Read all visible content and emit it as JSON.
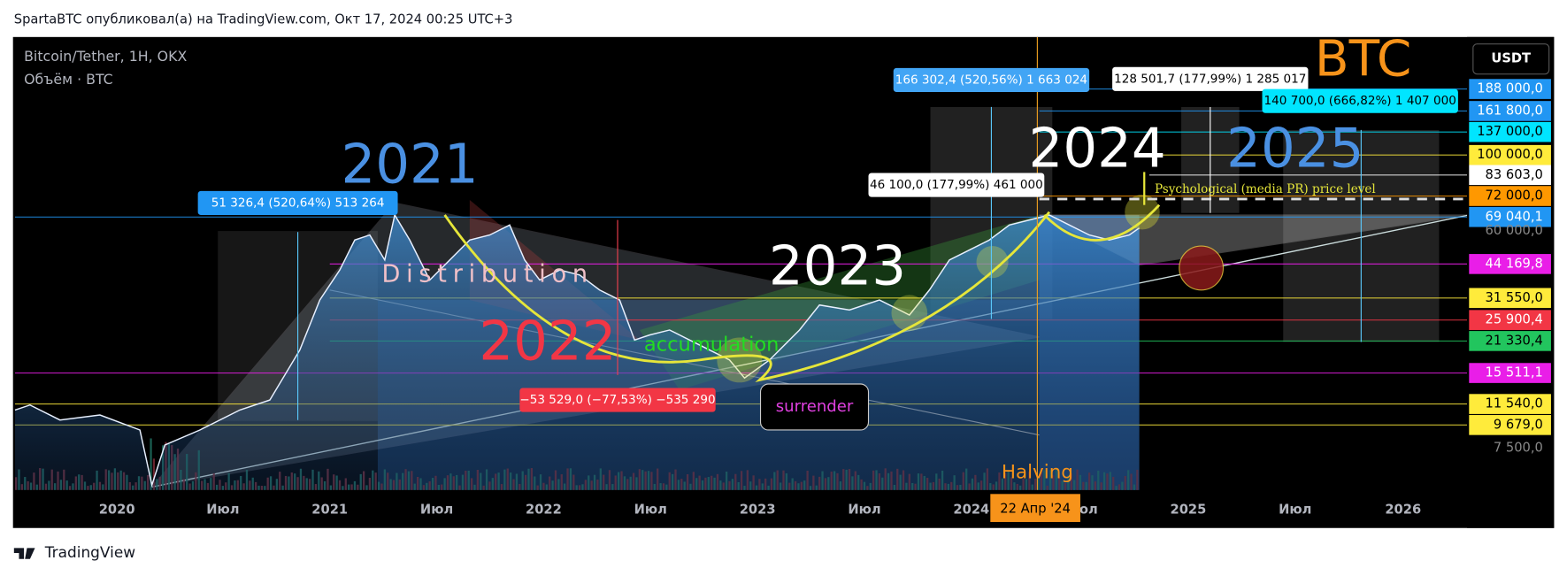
{
  "header": {
    "title": "SpartaBTC опубликовал(а) на TradingView.com, Окт 17, 2024 00:25 UTC+3"
  },
  "chart": {
    "symbol": "Bitcoin/Tether, 1H, OKX",
    "volume": "Объём · BTC",
    "currency": "USDT"
  },
  "price_axis": [
    "188 000,0",
    "161 800,0",
    "137 000,0",
    "100 000,0",
    "83 603,0",
    "72 000,0",
    "69 040,1",
    "60 000,0",
    "44 169,8",
    "31 550,0",
    "25 900,4",
    "21 330,4",
    "15 511,1",
    "11 540,0",
    "9 679,0",
    "7 500,0"
  ],
  "time_axis": [
    "2020",
    "Июл",
    "2021",
    "Июл",
    "2022",
    "Июл",
    "2023",
    "Июл",
    "2024",
    "Июл",
    "2025",
    "Июл",
    "2026"
  ],
  "halving_date": "22 Апр '24",
  "annotations": [
    "2021",
    "2022",
    "2023",
    "2024",
    "2025",
    "BTC",
    "Distribution",
    "accumulation",
    "surrender",
    "Halving",
    "Psychological (media PR) price level"
  ],
  "measurements": [
    "51 326,4 (520,64%) 513 264",
    "−53 529,0 (−77,53%) −535 290",
    "46 100,0 (177,99%) 461 000",
    "166 302,4 (520,56%) 1 663 024",
    "128 501,7 (177,99%) 1 285 017",
    "140 700,0 (666,82%) 1 407 000"
  ],
  "footer": {
    "brand": "TradingView"
  }
}
